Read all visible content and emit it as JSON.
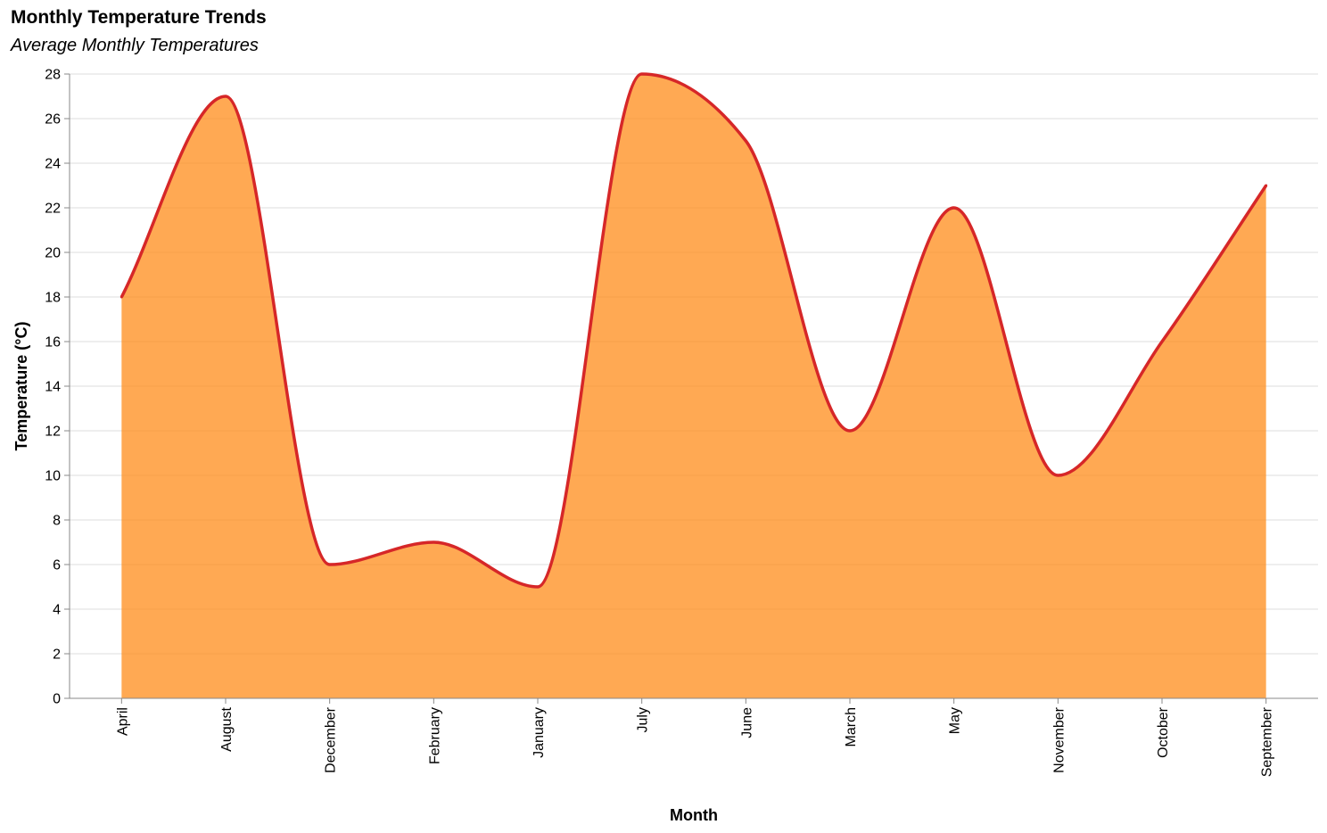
{
  "chart_data": {
    "type": "area",
    "title": "Monthly Temperature Trends",
    "subtitle": "Average Monthly Temperatures",
    "xlabel": "Month",
    "ylabel": "Temperature (°C)",
    "categories": [
      "April",
      "August",
      "December",
      "February",
      "January",
      "July",
      "June",
      "March",
      "May",
      "November",
      "October",
      "September"
    ],
    "values": [
      18,
      27,
      6,
      7,
      5,
      28,
      25,
      12,
      22,
      10,
      16,
      23
    ],
    "ylim": [
      0,
      28
    ],
    "yticks": [
      0,
      2,
      4,
      6,
      8,
      10,
      12,
      14,
      16,
      18,
      20,
      22,
      24,
      26,
      28
    ],
    "grid": true,
    "interpolation": "monotone",
    "colors": {
      "fill": "#ff8c1a",
      "line": "#d62728"
    }
  }
}
